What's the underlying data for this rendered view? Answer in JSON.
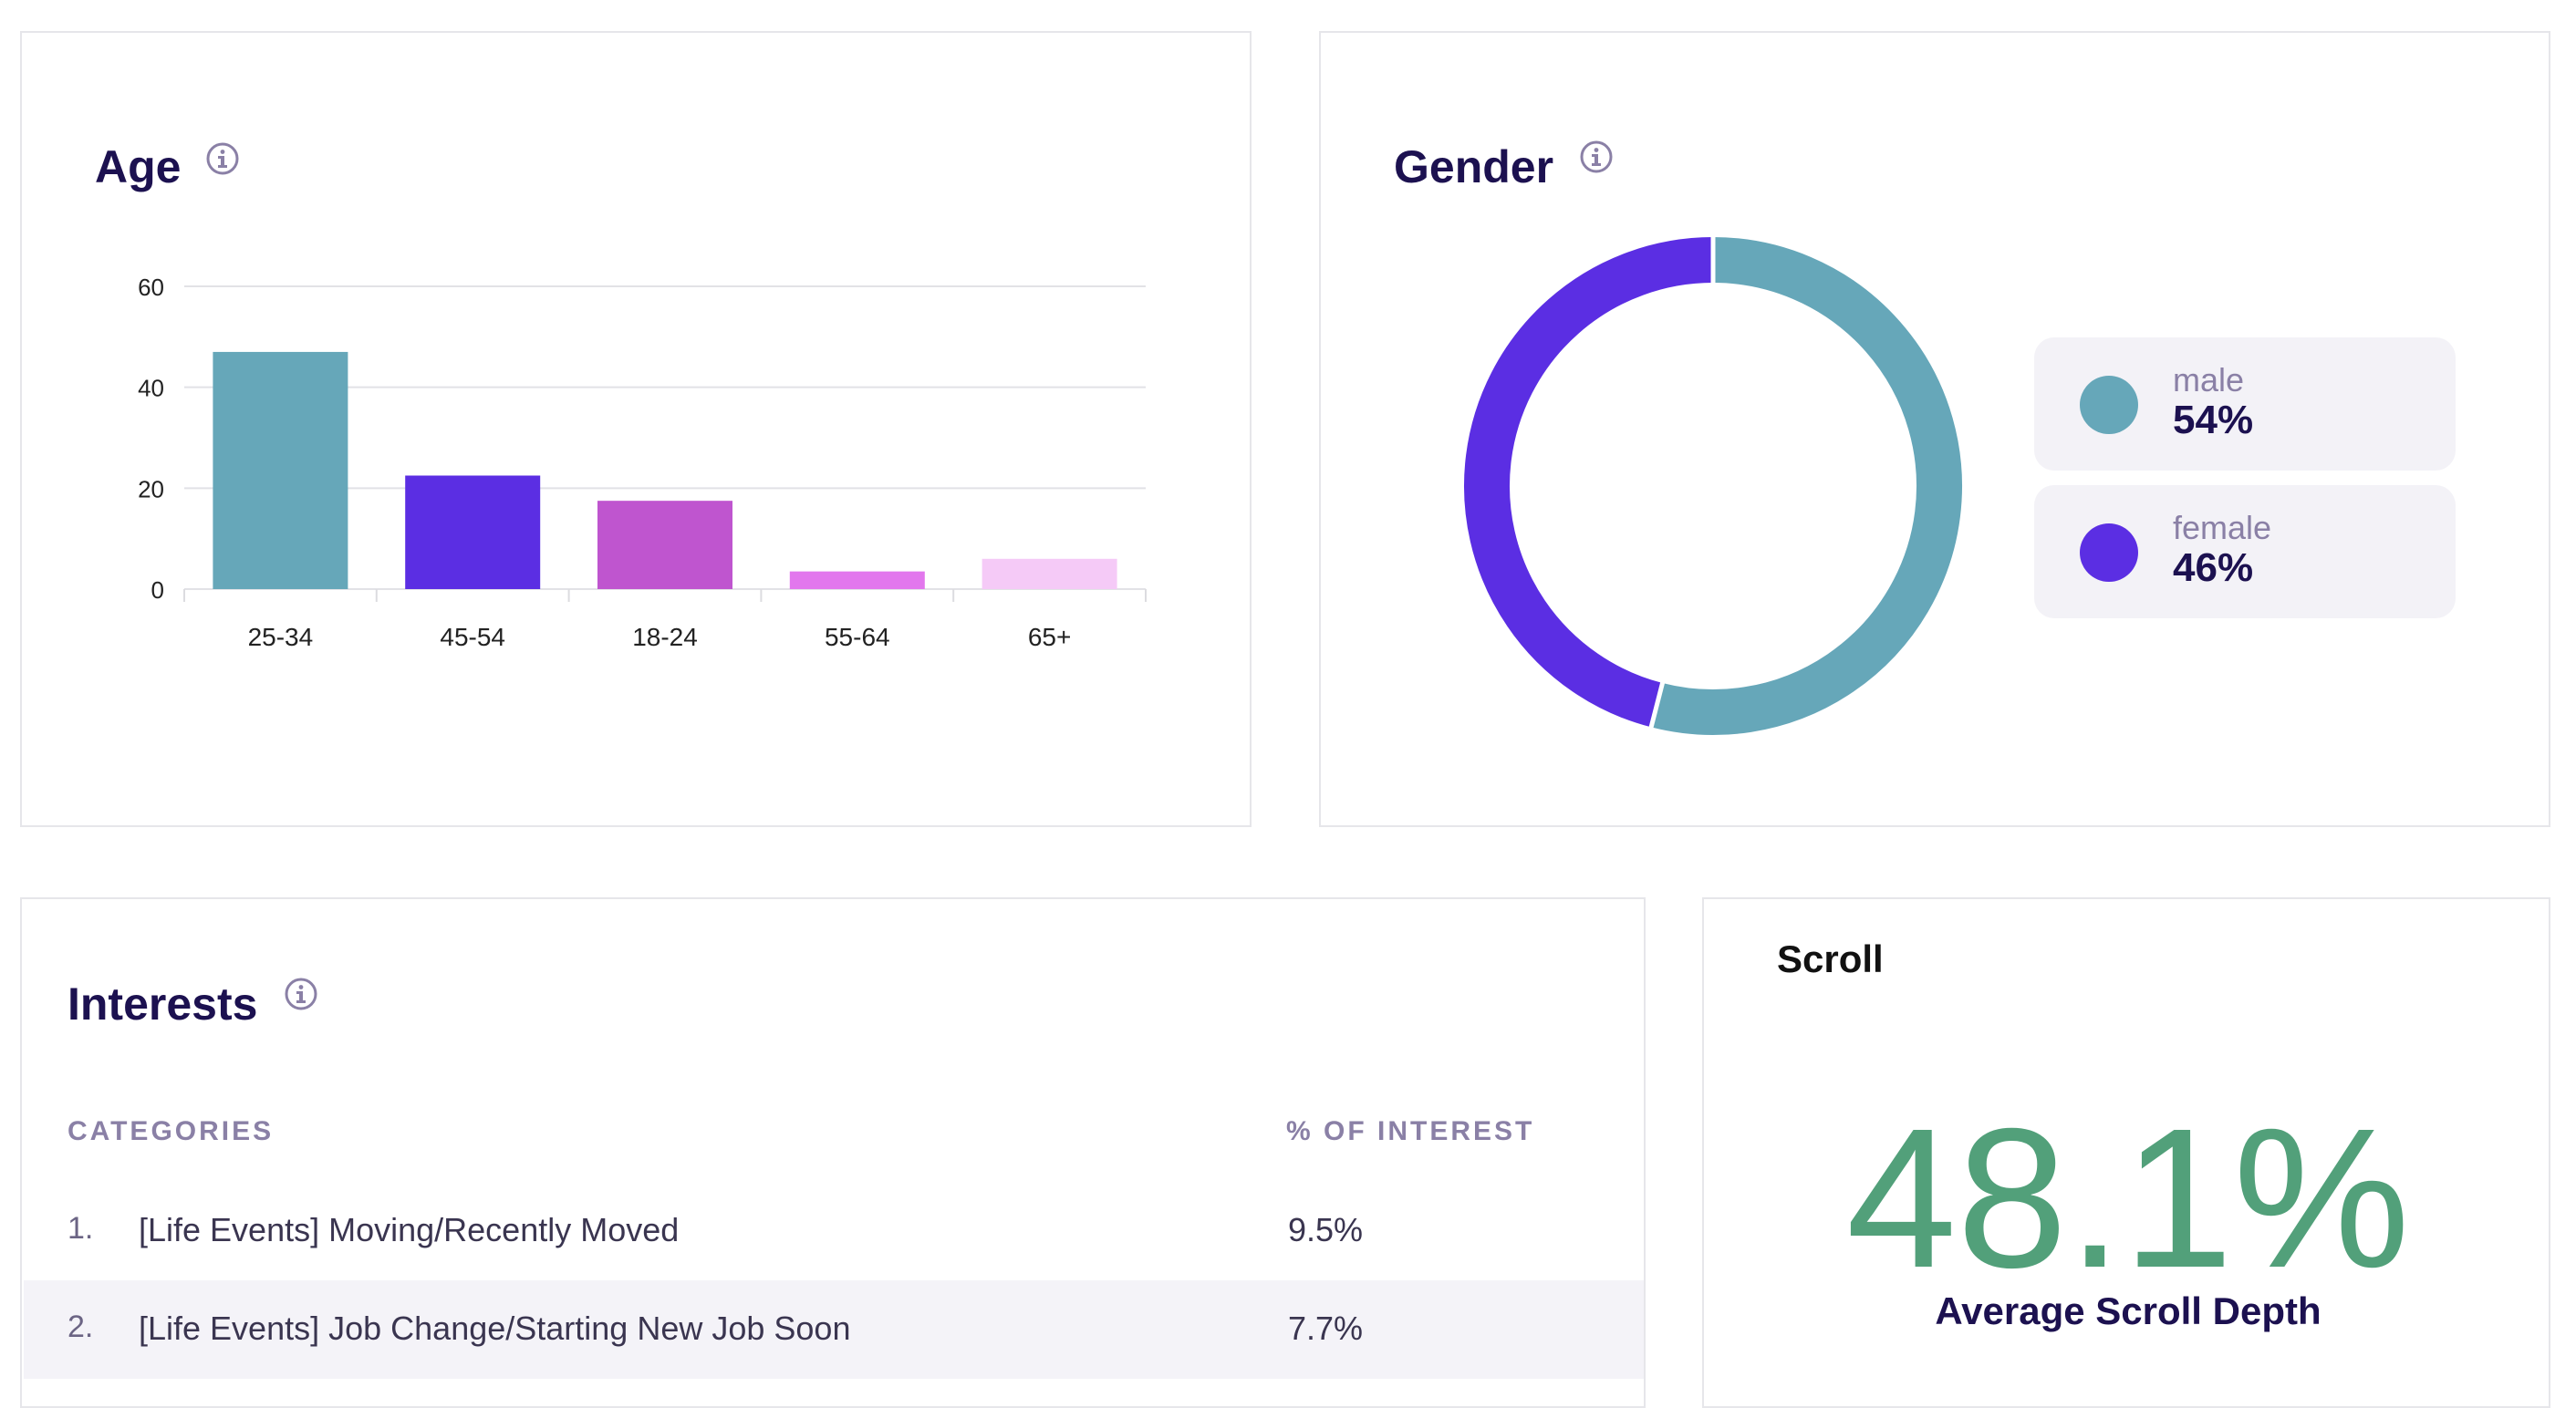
{
  "age": {
    "title": "Age",
    "info_icon": "info-circle-icon",
    "chart_data": {
      "type": "bar",
      "categories": [
        "25-34",
        "45-54",
        "18-24",
        "55-64",
        "65+"
      ],
      "values": [
        47,
        22.5,
        17.5,
        3.5,
        6
      ],
      "colors": [
        "#66a7b9",
        "#5b2ee3",
        "#bf55cf",
        "#e277ed",
        "#f5caf7"
      ],
      "yticks": [
        0,
        20,
        40,
        60
      ],
      "ylim": [
        0,
        60
      ],
      "grid": true,
      "title": "Age",
      "xlabel": "",
      "ylabel": ""
    }
  },
  "gender": {
    "title": "Gender",
    "info_icon": "info-circle-icon",
    "chart_data": {
      "type": "pie",
      "donut": true,
      "categories": [
        "male",
        "female"
      ],
      "values": [
        54,
        46
      ],
      "colors": [
        "#66a7b9",
        "#5b2ee3"
      ],
      "title": "Gender"
    },
    "legend": [
      {
        "label": "male",
        "value": "54%",
        "color": "#66a7b9"
      },
      {
        "label": "female",
        "value": "46%",
        "color": "#5b2ee3"
      }
    ]
  },
  "interests": {
    "title": "Interests",
    "info_icon": "info-circle-icon",
    "columns": {
      "categories": "CATEGORIES",
      "percent": "% OF INTEREST"
    },
    "rows": [
      {
        "num": "1.",
        "name": "[Life Events] Moving/Recently Moved",
        "value": "9.5%"
      },
      {
        "num": "2.",
        "name": "[Life Events] Job Change/Starting New Job Soon",
        "value": "7.7%"
      }
    ]
  },
  "scroll": {
    "title": "Scroll",
    "value": "48.1%",
    "label": "Average Scroll Depth",
    "value_color": "#52a07a"
  }
}
